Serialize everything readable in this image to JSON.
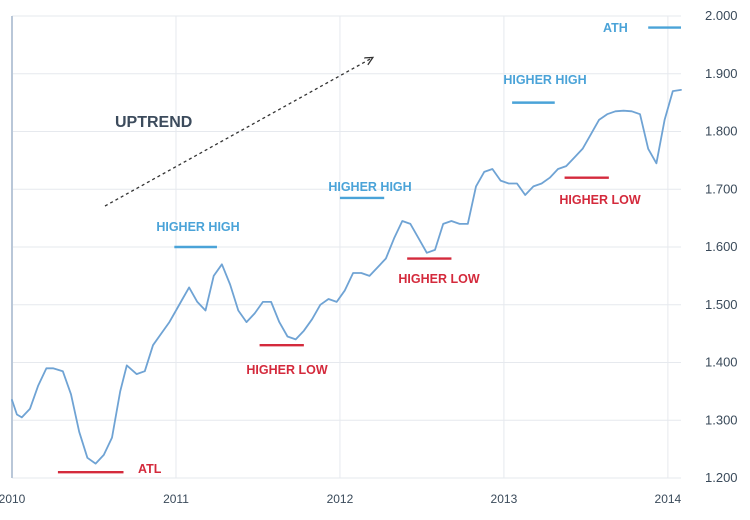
{
  "chart_data": {
    "type": "line",
    "title": "",
    "xlabel": "",
    "ylabel": "",
    "xlim": [
      2010,
      2014.08
    ],
    "ylim": [
      1.2,
      2.0
    ],
    "grid": true,
    "legend": "none",
    "x_ticks": [
      {
        "value": 2010,
        "label": "2010"
      },
      {
        "value": 2011,
        "label": "2011"
      },
      {
        "value": 2012,
        "label": "2012"
      },
      {
        "value": 2013,
        "label": "2013"
      },
      {
        "value": 2014,
        "label": "2014"
      }
    ],
    "y_ticks": [
      {
        "value": 1.2,
        "label": "1.200"
      },
      {
        "value": 1.3,
        "label": "1.300"
      },
      {
        "value": 1.4,
        "label": "1.400"
      },
      {
        "value": 1.5,
        "label": "1.500"
      },
      {
        "value": 1.6,
        "label": "1.600"
      },
      {
        "value": 1.7,
        "label": "1.700"
      },
      {
        "value": 1.8,
        "label": "1.800"
      },
      {
        "value": 1.9,
        "label": "1.900"
      },
      {
        "value": 2.0,
        "label": "2.000"
      }
    ],
    "series": [
      {
        "line_color": "#6fa3d4",
        "x": [
          2010.0,
          2010.03,
          2010.06,
          2010.11,
          2010.16,
          2010.21,
          2010.25,
          2010.31,
          2010.36,
          2010.41,
          2010.46,
          2010.51,
          2010.56,
          2010.61,
          2010.66,
          2010.7,
          2010.76,
          2010.81,
          2010.86,
          2010.91,
          2010.96,
          2011.0,
          2011.04,
          2011.08,
          2011.13,
          2011.18,
          2011.23,
          2011.28,
          2011.33,
          2011.38,
          2011.43,
          2011.48,
          2011.53,
          2011.58,
          2011.63,
          2011.68,
          2011.73,
          2011.78,
          2011.83,
          2011.88,
          2011.93,
          2011.98,
          2012.03,
          2012.08,
          2012.13,
          2012.18,
          2012.23,
          2012.28,
          2012.33,
          2012.38,
          2012.43,
          2012.48,
          2012.53,
          2012.58,
          2012.63,
          2012.68,
          2012.73,
          2012.78,
          2012.83,
          2012.88,
          2012.93,
          2012.98,
          2013.03,
          2013.08,
          2013.13,
          2013.18,
          2013.23,
          2013.28,
          2013.33,
          2013.38,
          2013.43,
          2013.48,
          2013.53,
          2013.58,
          2013.63,
          2013.68,
          2013.73,
          2013.78,
          2013.83,
          2013.88,
          2013.93,
          2013.98,
          2014.03,
          2014.08
        ],
        "y": [
          1.335,
          1.31,
          1.305,
          1.32,
          1.36,
          1.39,
          1.39,
          1.385,
          1.345,
          1.28,
          1.235,
          1.225,
          1.24,
          1.27,
          1.35,
          1.395,
          1.38,
          1.385,
          1.43,
          1.45,
          1.47,
          1.49,
          1.51,
          1.53,
          1.505,
          1.49,
          1.55,
          1.57,
          1.535,
          1.49,
          1.47,
          1.485,
          1.505,
          1.505,
          1.47,
          1.445,
          1.44,
          1.455,
          1.475,
          1.5,
          1.51,
          1.505,
          1.525,
          1.555,
          1.555,
          1.55,
          1.565,
          1.58,
          1.615,
          1.645,
          1.64,
          1.615,
          1.59,
          1.595,
          1.64,
          1.645,
          1.64,
          1.64,
          1.705,
          1.73,
          1.735,
          1.715,
          1.71,
          1.71,
          1.69,
          1.705,
          1.71,
          1.72,
          1.735,
          1.74,
          1.755,
          1.77,
          1.795,
          1.82,
          1.83,
          1.835,
          1.836,
          1.835,
          1.83,
          1.77,
          1.745,
          1.82,
          1.87,
          1.872
        ]
      }
    ],
    "annotations": [
      {
        "id": "atl",
        "text": "ATL",
        "kind": "low",
        "line_x": [
          2010.28,
          2010.68
        ],
        "line_y": 1.21
      },
      {
        "id": "higher-high-2011",
        "text": "HIGHER HIGH",
        "kind": "high",
        "line_x": [
          2010.99,
          2011.25
        ],
        "line_y": 1.6
      },
      {
        "id": "higher-low-2011",
        "text": "HIGHER LOW",
        "kind": "low",
        "line_x": [
          2011.51,
          2011.78
        ],
        "line_y": 1.43
      },
      {
        "id": "higher-high-2012",
        "text": "HIGHER HIGH",
        "kind": "high",
        "line_x": [
          2012.0,
          2012.27
        ],
        "line_y": 1.685
      },
      {
        "id": "higher-low-2012",
        "text": "HIGHER LOW",
        "kind": "low",
        "line_x": [
          2012.41,
          2012.68
        ],
        "line_y": 1.58
      },
      {
        "id": "higher-high-2013",
        "text": "HIGHER HIGH",
        "kind": "high",
        "line_x": [
          2013.05,
          2013.31
        ],
        "line_y": 1.85
      },
      {
        "id": "higher-low-2013",
        "text": "HIGHER LOW",
        "kind": "low",
        "line_x": [
          2013.37,
          2013.64
        ],
        "line_y": 1.72
      },
      {
        "id": "ath",
        "text": "ATH",
        "kind": "high",
        "line_x": [
          2013.88,
          2014.08
        ],
        "line_y": 1.98
      },
      {
        "id": "uptrend",
        "text": "UPTREND",
        "kind": "trend"
      }
    ],
    "colors": {
      "high": "#4aa3d8",
      "low": "#d42a3c",
      "line": "#6fa3d4",
      "trend": "#3c4b5c",
      "grid": "#e6e9ee"
    }
  }
}
